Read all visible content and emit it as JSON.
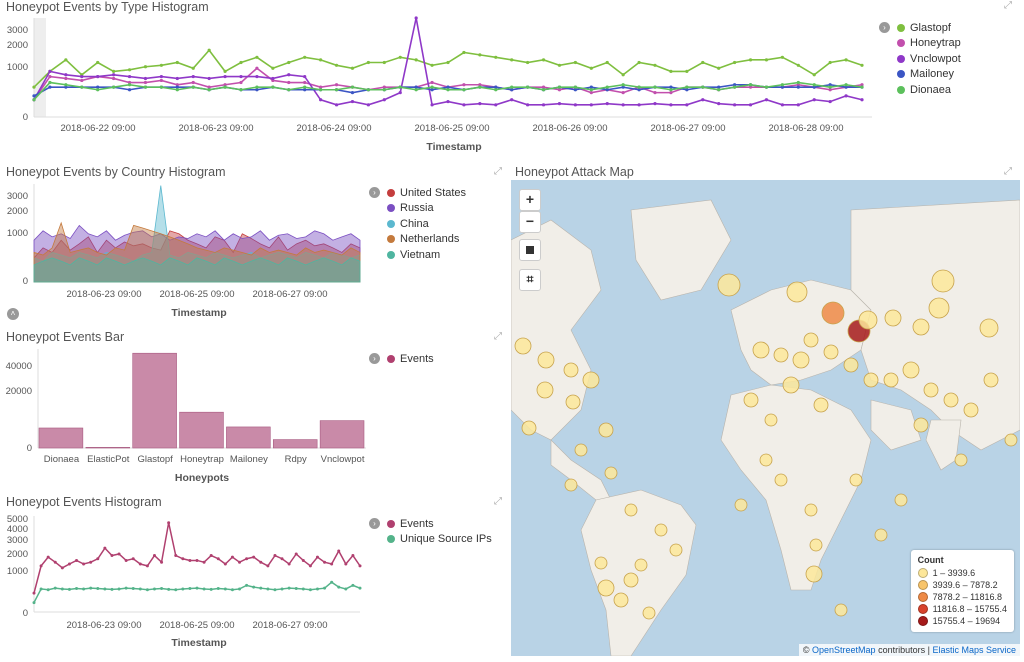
{
  "type_hist": {
    "title": "Honeypot Events by Type Histogram",
    "xlabel": "Timestamp",
    "yticks": [
      "3000",
      "2000",
      "1000",
      "0"
    ],
    "xticks": [
      "2018-06-22 09:00",
      "2018-06-23 09:00",
      "2018-06-24 09:00",
      "2018-06-25 09:00",
      "2018-06-26 09:00",
      "2018-06-27 09:00",
      "2018-06-28 09:00"
    ],
    "legend": [
      {
        "label": "Glastopf",
        "color": "#7fbf3f"
      },
      {
        "label": "Honeytrap",
        "color": "#c24fad"
      },
      {
        "label": "Vnclowpot",
        "color": "#8f38c8"
      },
      {
        "label": "Mailoney",
        "color": "#3b55c4"
      },
      {
        "label": "Dionaea",
        "color": "#5cc05c"
      }
    ]
  },
  "country_hist": {
    "title": "Honeypot Events by Country Histogram",
    "xlabel": "Timestamp",
    "yticks": [
      "3000",
      "2000",
      "1000",
      "0"
    ],
    "xticks": [
      "2018-06-23 09:00",
      "2018-06-25 09:00",
      "2018-06-27 09:00"
    ],
    "legend": [
      {
        "label": "United States",
        "color": "#c43d3d"
      },
      {
        "label": "Russia",
        "color": "#7b4fc2"
      },
      {
        "label": "China",
        "color": "#5bb8cf"
      },
      {
        "label": "Netherlands",
        "color": "#c47a3d"
      },
      {
        "label": "Vietnam",
        "color": "#4fb5a0"
      }
    ]
  },
  "bar": {
    "title": "Honeypot Events Bar",
    "xlabel": "Honeypots",
    "yticks": [
      "40000",
      "20000",
      "0"
    ],
    "legend": [
      {
        "label": "Events",
        "color": "#b0406f"
      }
    ]
  },
  "events_hist": {
    "title": "Honeypot Events Histogram",
    "xlabel": "Timestamp",
    "yticks": [
      "5000",
      "4000",
      "3000",
      "2000",
      "1000",
      "0"
    ],
    "xticks": [
      "2018-06-23 09:00",
      "2018-06-25 09:00",
      "2018-06-27 09:00"
    ],
    "legend": [
      {
        "label": "Events",
        "color": "#b0406f"
      },
      {
        "label": "Unique Source IPs",
        "color": "#54b38a"
      }
    ]
  },
  "map": {
    "title": "Honeypot Attack Map",
    "zoom_in": "+",
    "zoom_out": "−",
    "legend_title": "Count",
    "legend": [
      {
        "label": "1 – 3939.6",
        "color": "#fde79a"
      },
      {
        "label": "3939.6 – 7878.2",
        "color": "#f8c46a"
      },
      {
        "label": "7878.2 – 11816.8",
        "color": "#ee8a46"
      },
      {
        "label": "11816.8 – 15755.4",
        "color": "#d8432c"
      },
      {
        "label": "15755.4 – 19694",
        "color": "#a61b1b"
      }
    ],
    "attrib_prefix": "©",
    "attrib_osm": "OpenStreetMap",
    "attrib_mid": "contributors",
    "attrib_sep": "|",
    "attrib_ems": "Elastic Maps Service"
  },
  "chart_data": [
    {
      "type": "bar",
      "categories": [
        "Dionaea",
        "ElasticPot",
        "Glastopf",
        "Honeytrap",
        "Mailoney",
        "Rdpy",
        "Vnclowpot"
      ],
      "series": [
        {
          "name": "Events",
          "values": [
            9500,
            300,
            45000,
            17000,
            10000,
            4000,
            13000
          ]
        }
      ],
      "xlabel": "Honeypots",
      "ylim": [
        0,
        47000
      ]
    },
    {
      "type": "line",
      "xlabel": "Timestamp",
      "x_range": [
        "2018-06-21 12:00",
        "2018-06-29 06:00"
      ],
      "series": [
        {
          "name": "Glastopf",
          "values": [
            300,
            700,
            1100,
            600,
            1000,
            700,
            750,
            850,
            900,
            1000,
            800,
            1500,
            700,
            1000,
            1200,
            800,
            1000,
            1200,
            1100,
            900,
            800,
            1000,
            1000,
            1200,
            1100,
            900,
            1000,
            1400,
            1300,
            1200,
            1100,
            1000,
            1100,
            900,
            1000,
            800,
            1000,
            600,
            1000,
            900,
            700,
            700,
            1000,
            800,
            1000,
            1100,
            1100,
            1200,
            900,
            600,
            1000,
            1100,
            900
          ]
        },
        {
          "name": "Honeytrap",
          "values": [
            100,
            550,
            500,
            450,
            550,
            500,
            400,
            400,
            450,
            350,
            400,
            300,
            350,
            400,
            800,
            450,
            400,
            400,
            300,
            350,
            300,
            250,
            300,
            300,
            300,
            400,
            300,
            350,
            350,
            300,
            250,
            300,
            300,
            250,
            300,
            200,
            250,
            200,
            300,
            200,
            200,
            300,
            300,
            250,
            300,
            300,
            300,
            300,
            350,
            300,
            250,
            300,
            350
          ]
        },
        {
          "name": "Vnclowpot",
          "values": [
            100,
            700,
            600,
            550,
            550,
            600,
            550,
            500,
            550,
            500,
            550,
            500,
            550,
            550,
            550,
            500,
            600,
            550,
            100,
            50,
            80,
            50,
            100,
            200,
            3300,
            50,
            80,
            50,
            60,
            50,
            100,
            50,
            50,
            60,
            50,
            50,
            60,
            50,
            50,
            60,
            50,
            50,
            100,
            60,
            50,
            50,
            100,
            50,
            50,
            100,
            80,
            150,
            100
          ]
        },
        {
          "name": "Mailoney",
          "values": [
            150,
            300,
            300,
            300,
            300,
            300,
            250,
            300,
            300,
            300,
            300,
            250,
            300,
            250,
            250,
            300,
            250,
            250,
            250,
            250,
            200,
            250,
            250,
            300,
            300,
            250,
            300,
            250,
            300,
            300,
            250,
            300,
            250,
            300,
            250,
            300,
            250,
            300,
            250,
            300,
            300,
            250,
            300,
            300,
            350,
            350,
            300,
            300,
            300,
            300,
            350,
            300,
            300
          ]
        },
        {
          "name": "Dionaea",
          "values": [
            100,
            400,
            350,
            300,
            250,
            300,
            350,
            300,
            300,
            250,
            300,
            250,
            300,
            250,
            300,
            300,
            250,
            300,
            250,
            250,
            300,
            250,
            250,
            300,
            250,
            300,
            250,
            250,
            300,
            250,
            300,
            300,
            250,
            300,
            300,
            250,
            300,
            350,
            300,
            300,
            250,
            300,
            300,
            250,
            300,
            350,
            300,
            350,
            400,
            350,
            300,
            350,
            300
          ]
        }
      ]
    },
    {
      "type": "area",
      "xlabel": "Timestamp",
      "x_range": [
        "2018-06-22 00:00",
        "2018-06-28 12:00"
      ],
      "series": [
        {
          "name": "United States",
          "values": [
            200,
            400,
            300,
            600,
            350,
            500,
            700,
            300,
            600,
            400,
            550,
            450,
            500,
            400,
            350,
            900,
            800,
            600,
            500,
            400,
            700,
            600,
            300,
            800,
            650,
            500,
            400,
            700,
            350,
            500,
            600,
            450,
            500,
            400,
            300,
            500,
            400
          ]
        },
        {
          "name": "Russia",
          "values": [
            600,
            900,
            700,
            800,
            650,
            1100,
            800,
            700,
            900,
            600,
            750,
            850,
            900,
            700,
            800,
            600,
            700,
            650,
            800,
            700,
            900,
            600,
            800,
            650,
            700,
            900,
            600,
            750,
            800,
            650,
            700,
            900,
            800,
            600,
            700,
            800,
            600
          ]
        },
        {
          "name": "China",
          "values": [
            200,
            150,
            300,
            250,
            200,
            300,
            250,
            200,
            300,
            250,
            200,
            150,
            250,
            300,
            3200,
            250,
            200,
            300,
            250,
            200,
            300,
            250,
            200,
            250,
            300,
            200,
            250,
            300,
            250,
            200,
            300,
            250,
            200,
            300,
            250,
            200,
            250
          ]
        },
        {
          "name": "Netherlands",
          "values": [
            300,
            250,
            400,
            1200,
            300,
            350,
            400,
            300,
            250,
            400,
            350,
            1100,
            1000,
            900,
            800,
            700,
            600,
            500,
            400,
            350,
            300,
            400,
            350,
            300,
            250,
            400,
            300,
            350,
            300,
            250,
            400,
            300,
            350,
            300,
            250,
            400,
            300
          ]
        },
        {
          "name": "Vietnam",
          "values": [
            100,
            150,
            200,
            150,
            100,
            200,
            150,
            100,
            200,
            150,
            100,
            150,
            200,
            150,
            100,
            200,
            150,
            100,
            200,
            150,
            100,
            200,
            150,
            100,
            150,
            200,
            150,
            100,
            200,
            150,
            100,
            150,
            200,
            150,
            100,
            200,
            150
          ]
        }
      ]
    },
    {
      "type": "line",
      "xlabel": "Timestamp",
      "x_range": [
        "2018-06-22 00:00",
        "2018-06-28 12:00"
      ],
      "series": [
        {
          "name": "Events",
          "values": [
            200,
            1200,
            1700,
            1400,
            1100,
            1300,
            1500,
            1300,
            1400,
            1600,
            2300,
            1800,
            1900,
            1500,
            1600,
            1300,
            1200,
            1800,
            1400,
            4500,
            1800,
            1600,
            1500,
            1500,
            1400,
            1800,
            1600,
            1300,
            1700,
            1400,
            1600,
            1700,
            1400,
            1200,
            1800,
            1600,
            1300,
            1900,
            1500,
            1200,
            1700,
            1400,
            1300,
            2100,
            1300,
            1800,
            1200
          ]
        },
        {
          "name": "Unique Source IPs",
          "values": [
            50,
            300,
            280,
            320,
            300,
            290,
            310,
            300,
            320,
            310,
            300,
            290,
            300,
            320,
            310,
            300,
            280,
            300,
            310,
            290,
            280,
            300,
            310,
            320,
            300,
            290,
            310,
            300,
            280,
            300,
            400,
            350,
            320,
            300,
            280,
            300,
            320,
            310,
            300,
            280,
            300,
            320,
            500,
            350,
            300,
            400,
            320
          ]
        }
      ]
    }
  ]
}
